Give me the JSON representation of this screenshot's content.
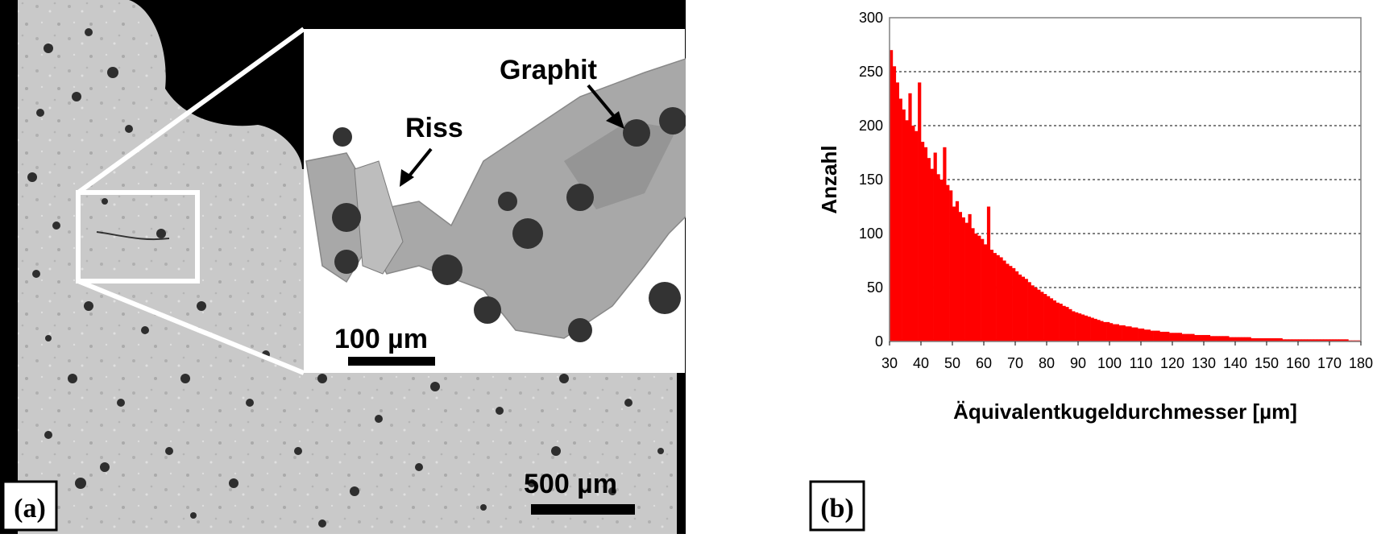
{
  "panel_a": {
    "label": "(a)",
    "scalebar_main": "500 µm",
    "scalebar_inset": "100 µm",
    "annotation_graphite": "Graphit",
    "annotation_crack": "Riss"
  },
  "panel_b": {
    "label": "(b)"
  },
  "chart_data": {
    "type": "bar",
    "xlabel": "Äquivalentkugeldurchmesser [µm]",
    "ylabel": "Anzahl",
    "xlim": [
      30,
      180
    ],
    "ylim": [
      0,
      300
    ],
    "xticks": [
      30,
      40,
      50,
      60,
      70,
      80,
      90,
      100,
      110,
      120,
      130,
      140,
      150,
      160,
      170,
      180
    ],
    "yticks": [
      0,
      50,
      100,
      150,
      200,
      250,
      300
    ],
    "grid": "horizontal dashed",
    "bar_color": "#ff0000",
    "x": [
      30,
      31,
      32,
      33,
      34,
      35,
      36,
      37,
      38,
      39,
      40,
      41,
      42,
      43,
      44,
      45,
      46,
      47,
      48,
      49,
      50,
      51,
      52,
      53,
      54,
      55,
      56,
      57,
      58,
      59,
      60,
      61,
      62,
      63,
      64,
      65,
      66,
      67,
      68,
      69,
      70,
      71,
      72,
      73,
      74,
      75,
      76,
      77,
      78,
      79,
      80,
      81,
      82,
      83,
      84,
      85,
      86,
      87,
      88,
      89,
      90,
      91,
      92,
      93,
      94,
      95,
      96,
      97,
      98,
      99,
      100,
      101,
      102,
      103,
      104,
      105,
      106,
      107,
      108,
      109,
      110,
      111,
      112,
      113,
      114,
      115,
      116,
      117,
      118,
      119,
      120,
      121,
      122,
      123,
      124,
      125,
      126,
      127,
      128,
      129,
      130,
      131,
      132,
      133,
      134,
      135,
      136,
      137,
      138,
      139,
      140,
      141,
      142,
      143,
      144,
      145,
      146,
      147,
      148,
      149,
      150,
      151,
      152,
      153,
      154,
      155,
      156,
      157,
      158,
      159,
      160,
      161,
      162,
      163,
      164,
      165,
      166,
      167,
      168,
      169,
      170,
      171,
      172,
      173,
      174,
      175,
      176,
      177,
      178,
      179
    ],
    "values": [
      270,
      255,
      240,
      225,
      215,
      205,
      230,
      200,
      195,
      240,
      185,
      180,
      170,
      160,
      175,
      155,
      150,
      180,
      145,
      140,
      125,
      130,
      120,
      115,
      110,
      118,
      105,
      100,
      98,
      95,
      90,
      125,
      85,
      82,
      80,
      78,
      75,
      72,
      70,
      68,
      65,
      62,
      60,
      58,
      55,
      52,
      50,
      48,
      46,
      44,
      42,
      40,
      38,
      36,
      35,
      33,
      32,
      30,
      28,
      27,
      26,
      25,
      24,
      23,
      22,
      21,
      20,
      19,
      18,
      18,
      17,
      16,
      16,
      15,
      15,
      14,
      14,
      13,
      13,
      12,
      12,
      11,
      11,
      10,
      10,
      10,
      9,
      9,
      9,
      8,
      8,
      8,
      8,
      7,
      7,
      7,
      7,
      6,
      6,
      6,
      6,
      6,
      5,
      5,
      5,
      5,
      5,
      5,
      4,
      4,
      4,
      4,
      4,
      4,
      4,
      3,
      3,
      3,
      3,
      3,
      3,
      3,
      3,
      3,
      3,
      2,
      2,
      2,
      2,
      2,
      2,
      2,
      2,
      2,
      2,
      2,
      2,
      2,
      2,
      2,
      2,
      2,
      2,
      2,
      2,
      2,
      1,
      1,
      1,
      1
    ]
  }
}
